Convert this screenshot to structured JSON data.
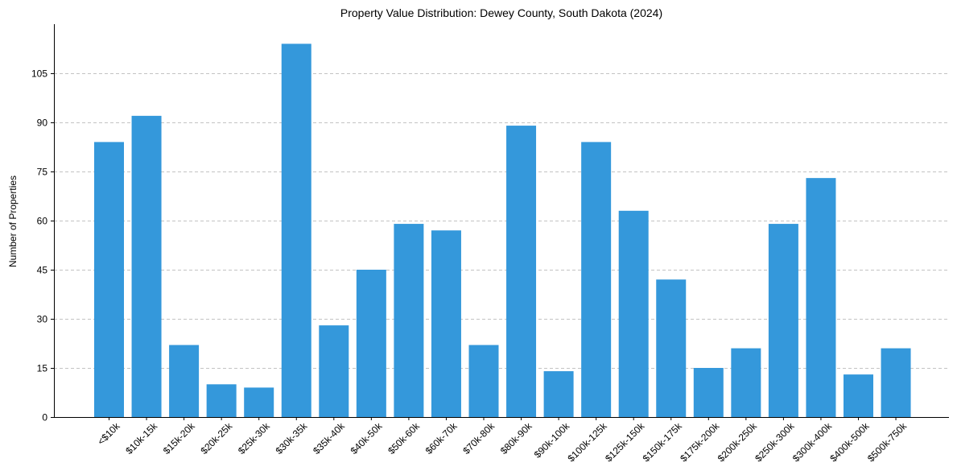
{
  "chart_data": {
    "type": "bar",
    "title": "Property Value Distribution: Dewey County, South Dakota (2024)",
    "xlabel": "",
    "ylabel": "Number of Properties",
    "categories": [
      "<$10k",
      "$10k-15k",
      "$15k-20k",
      "$20k-25k",
      "$25k-30k",
      "$30k-35k",
      "$35k-40k",
      "$40k-50k",
      "$50k-60k",
      "$60k-70k",
      "$70k-80k",
      "$80k-90k",
      "$90k-100k",
      "$100k-125k",
      "$125k-150k",
      "$150k-175k",
      "$175k-200k",
      "$200k-250k",
      "$250k-300k",
      "$300k-400k",
      "$400k-500k",
      "$500k-750k"
    ],
    "values": [
      84,
      92,
      22,
      10,
      9,
      114,
      28,
      45,
      59,
      57,
      22,
      89,
      14,
      84,
      63,
      42,
      15,
      21,
      59,
      73,
      13,
      21
    ],
    "ylim": [
      0,
      120
    ],
    "yticks": [
      0,
      15,
      30,
      45,
      60,
      75,
      90,
      105
    ],
    "grid": "y",
    "bar_color": "#3498db"
  }
}
